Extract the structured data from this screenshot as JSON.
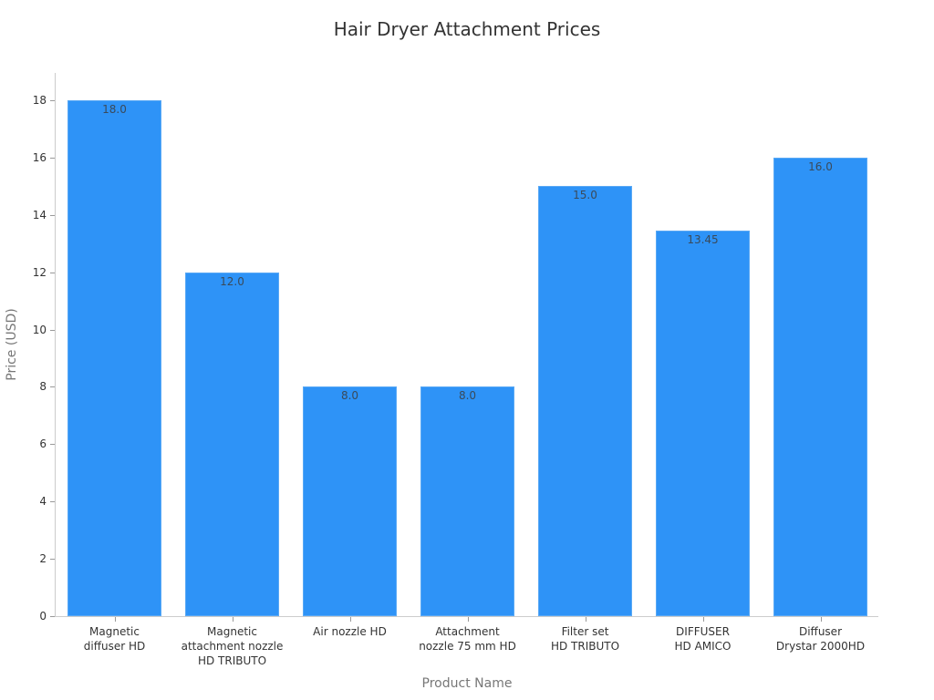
{
  "chart_data": {
    "type": "bar",
    "title": "Hair Dryer Attachment Prices",
    "xlabel": "Product Name",
    "ylabel": "Price (USD)",
    "categories": [
      "Magnetic diffuser HD",
      "Magnetic attachment nozzle HD TRIBUTO",
      "Air nozzle HD",
      "Attachment nozzle 75 mm HD",
      "Filter set HD TRIBUTO",
      "DIFFUSER HD AMICO",
      "Diffuser Drystar 2000HD"
    ],
    "category_labels_wrapped": [
      "Magnetic\ndiffuser HD",
      "Magnetic\nattachment nozzle\nHD TRIBUTO",
      "Air nozzle HD",
      "Attachment\nnozzle 75 mm HD",
      "Filter set\nHD TRIBUTO",
      "DIFFUSER\nHD AMICO",
      "Diffuser\nDrystar 2000HD"
    ],
    "values": [
      18.0,
      12.0,
      8.0,
      8.0,
      15.0,
      13.45,
      16.0
    ],
    "data_labels": [
      "18.0",
      "12.0",
      "8.0",
      "8.0",
      "15.0",
      "13.45",
      "16.0"
    ],
    "ylim": [
      0,
      19
    ],
    "yticks": [
      0,
      2,
      4,
      6,
      8,
      10,
      12,
      14,
      16,
      18
    ],
    "grid": false,
    "legend": null,
    "bar_color": "#2e93f7"
  }
}
